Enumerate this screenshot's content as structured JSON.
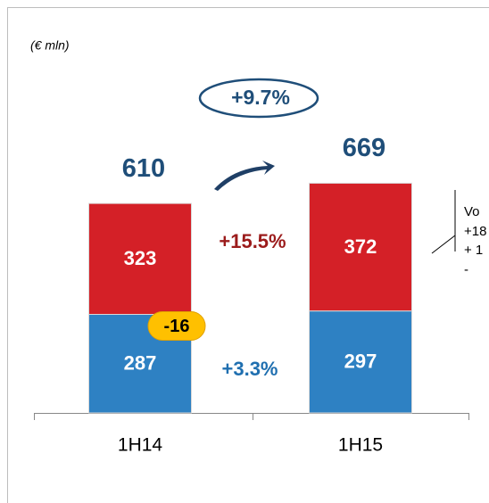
{
  "chart_data": {
    "type": "bar",
    "stacked": true,
    "unit_note": "(€ mln)",
    "categories": [
      "1H14",
      "1H15"
    ],
    "series": [
      {
        "color": "#2e81c3",
        "values": [
          287,
          297
        ]
      },
      {
        "color": "#d42027",
        "values": [
          323,
          372
        ]
      }
    ],
    "totals": [
      610,
      669
    ],
    "total_growth": "+9.7%",
    "series_growth": [
      "+3.3%",
      "+15.5%"
    ],
    "adjustment": "-16",
    "callout": [
      "Vo",
      "+18",
      "+ 1",
      "-"
    ]
  }
}
